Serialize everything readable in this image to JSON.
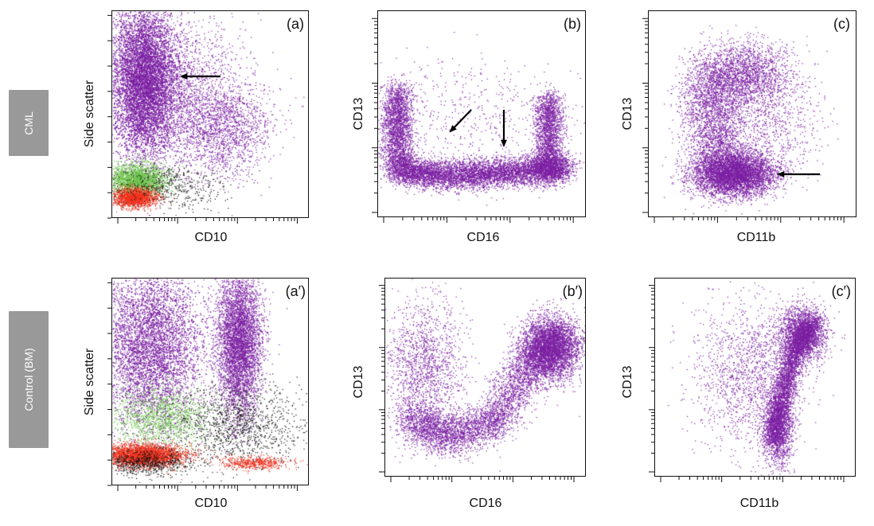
{
  "row_labels": [
    "CML",
    "Control (BM)"
  ],
  "colors": {
    "purple": "#7B1FA2",
    "green": "#6CC24A",
    "red": "#F0321E",
    "black": "#111111",
    "label_bg": "#999999"
  },
  "chart_data": [
    {
      "type": "scatter",
      "panel": "(a)",
      "xlabel": "CD10",
      "ylabel": "Side scatter",
      "x_scale": "log",
      "annotations": [
        "arrow pointing left at purple population"
      ],
      "populations": [
        {
          "color": "purple",
          "description": "high side scatter, CD10 negative (dominant)"
        },
        {
          "color": "purple",
          "description": "diffuse CD10 dim tail"
        },
        {
          "color": "green",
          "description": "low side scatter cluster"
        },
        {
          "color": "red",
          "description": "lowest side scatter cluster"
        },
        {
          "color": "black",
          "description": "scattered low events"
        }
      ]
    },
    {
      "type": "scatter",
      "panel": "(b)",
      "xlabel": "CD16",
      "ylabel": "CD13",
      "x_scale": "log",
      "y_scale": "log",
      "annotations": [
        "two downward arrows over depleted central region"
      ],
      "populations": [
        {
          "color": "purple",
          "description": "CD16 negative, CD13 variable"
        },
        {
          "color": "purple",
          "description": "horizontal band of low CD13 across CD16"
        },
        {
          "color": "purple",
          "description": "CD16 bright, CD13 variable"
        }
      ]
    },
    {
      "type": "scatter",
      "panel": "(c)",
      "xlabel": "CD11b",
      "ylabel": "CD13",
      "x_scale": "log",
      "y_scale": "log",
      "annotations": [
        "arrow pointing left at low CD13 cluster"
      ],
      "populations": [
        {
          "color": "purple",
          "description": "dense cluster, low CD13, intermediate CD11b"
        },
        {
          "color": "purple",
          "description": "funnel of cells rising in CD13"
        }
      ]
    },
    {
      "type": "scatter",
      "panel": "(a′)",
      "xlabel": "CD10",
      "ylabel": "Side scatter",
      "x_scale": "log",
      "populations": [
        {
          "color": "purple",
          "description": "CD10 negative granulocytes"
        },
        {
          "color": "purple",
          "description": "CD10 positive mature neutrophils"
        },
        {
          "color": "green",
          "description": "low side scatter"
        },
        {
          "color": "red",
          "description": "lymphocyte cluster"
        },
        {
          "color": "black",
          "description": "scattered events"
        }
      ]
    },
    {
      "type": "scatter",
      "panel": "(b′)",
      "xlabel": "CD16",
      "ylabel": "CD13",
      "x_scale": "log",
      "y_scale": "log",
      "populations": [
        {
          "color": "purple",
          "description": "normal maturation curve ending CD16 bright, CD13 bright"
        }
      ]
    },
    {
      "type": "scatter",
      "panel": "(c′)",
      "xlabel": "CD11b",
      "ylabel": "CD13",
      "x_scale": "log",
      "y_scale": "log",
      "populations": [
        {
          "color": "purple",
          "description": "normal V-shaped maturation pattern"
        }
      ]
    }
  ]
}
